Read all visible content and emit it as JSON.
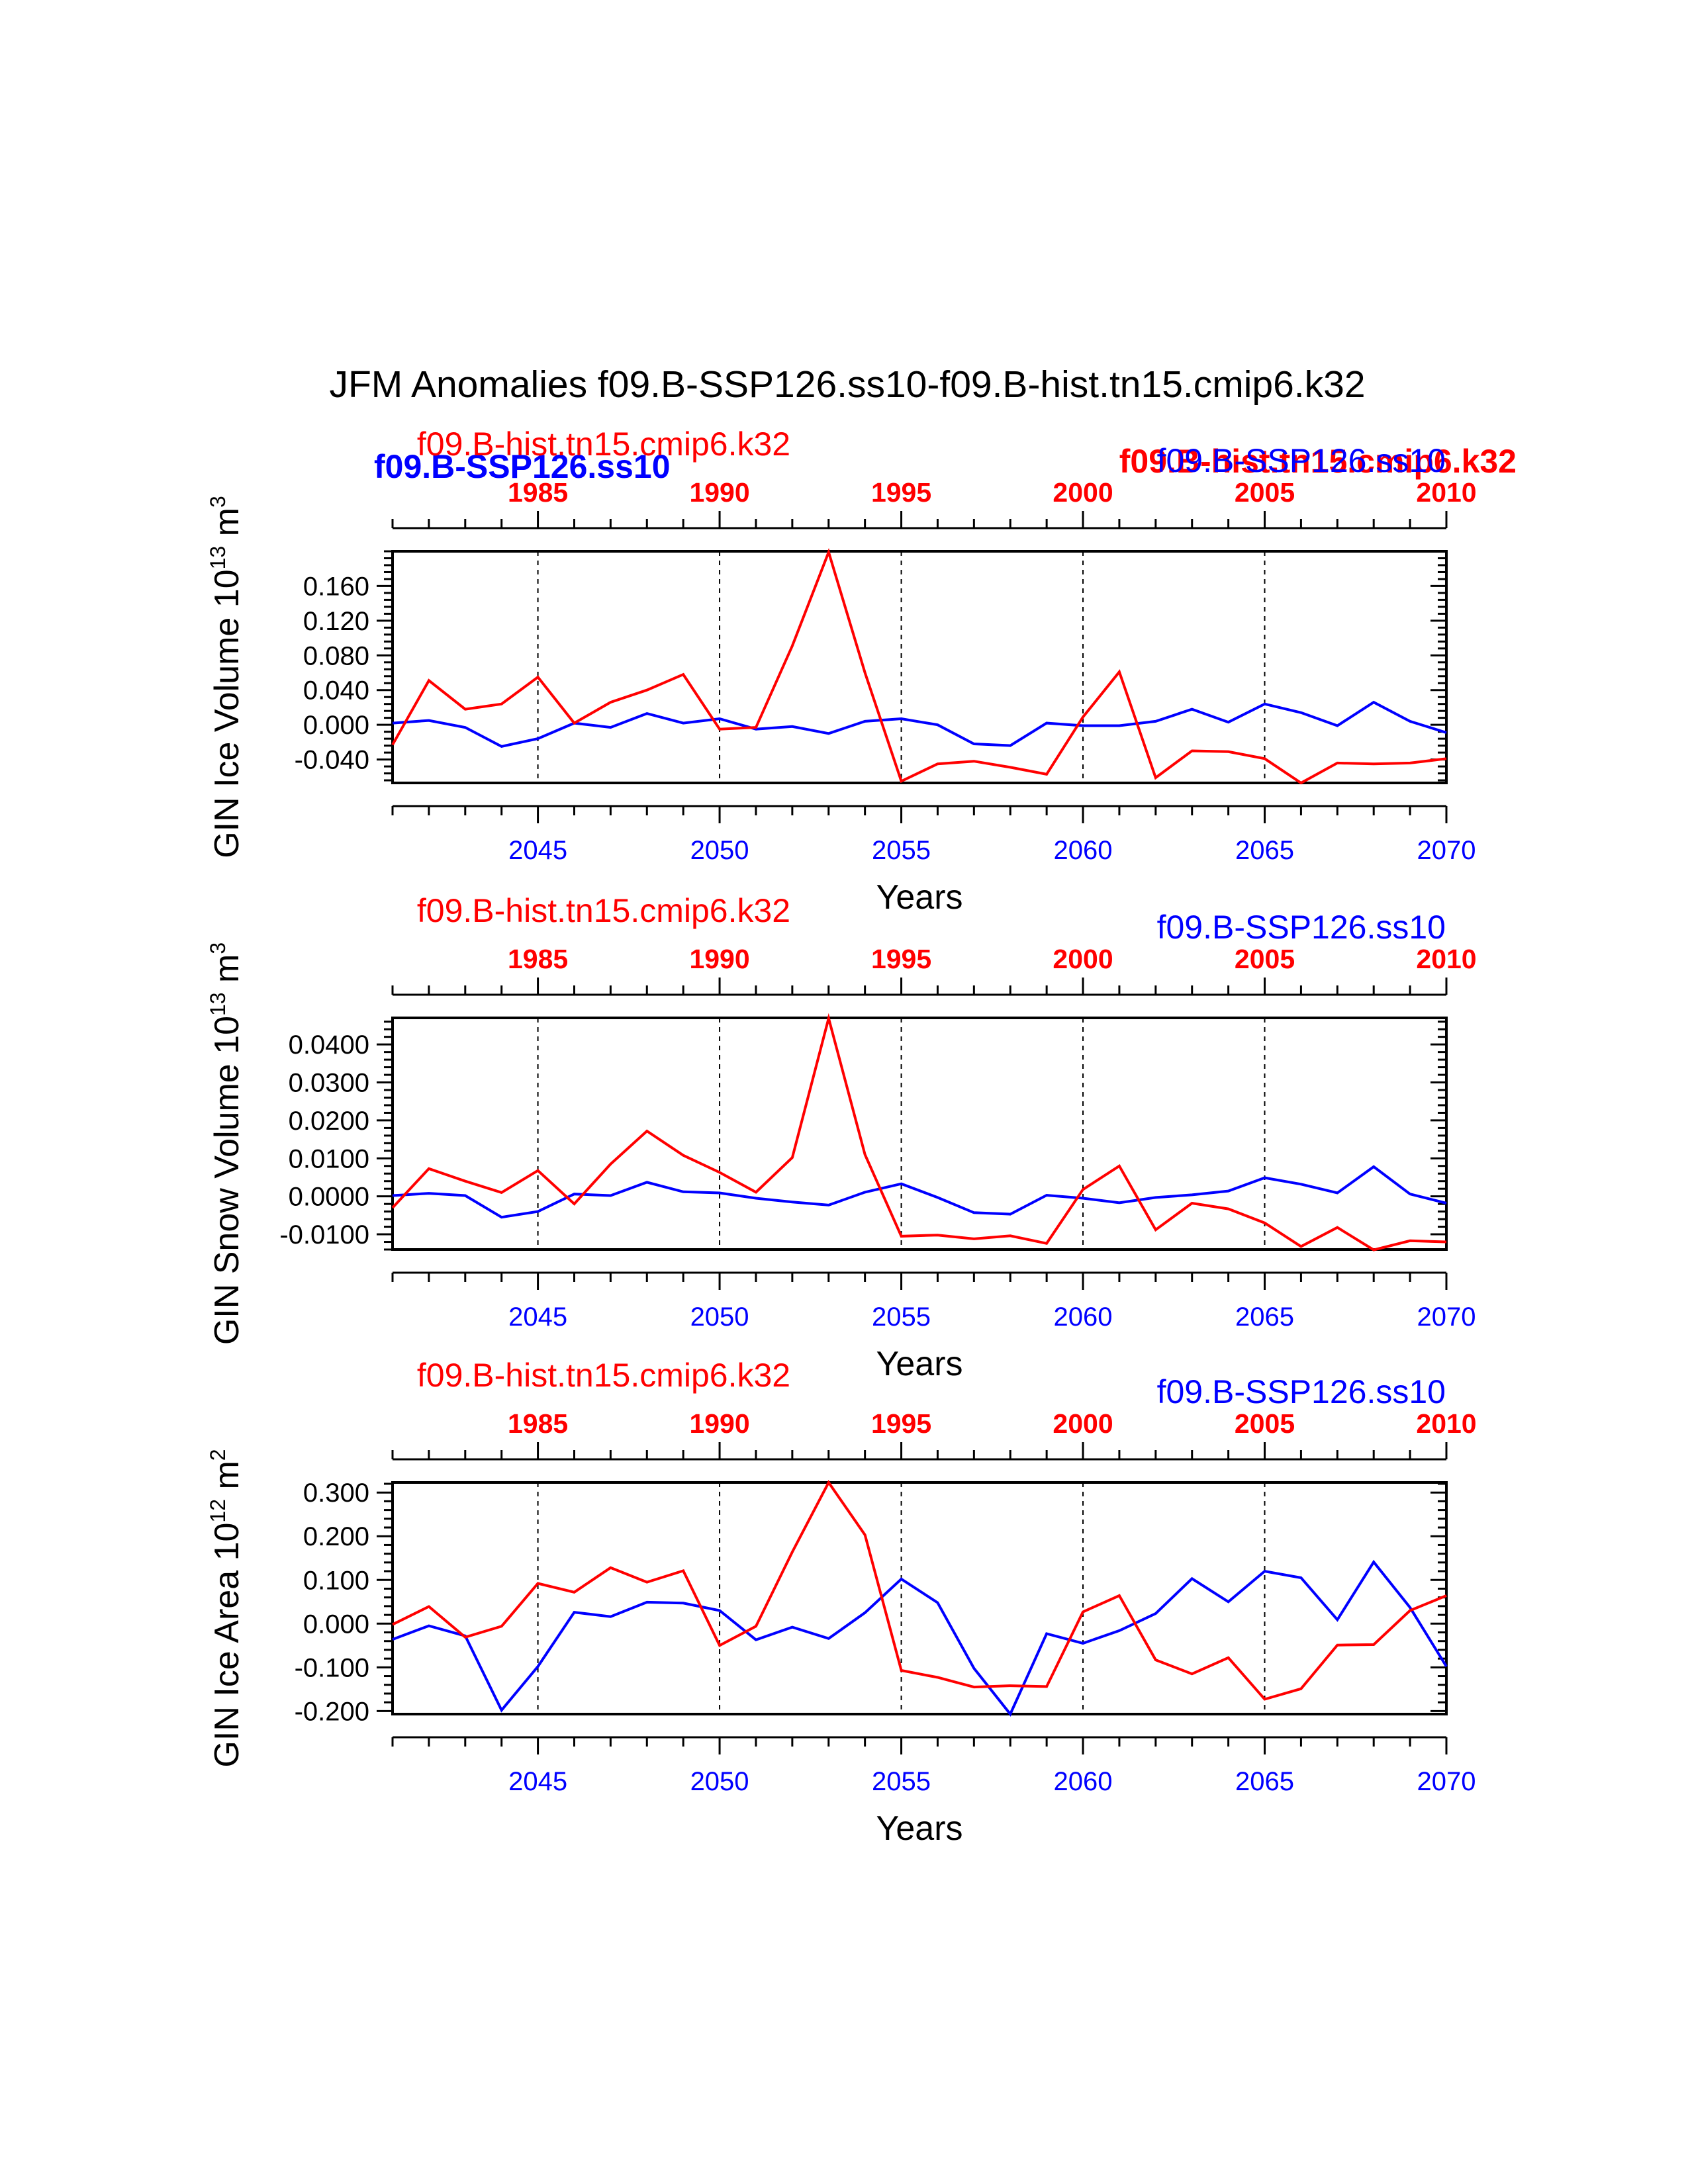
{
  "figure": {
    "title": "JFM Anomalies f09.B-SSP126.ss10-f09.B-hist.tn15.cmip6.k32",
    "bold_overlay": {
      "left_label": "f09.B-SSP126.ss10",
      "right_label": "f09.B-hist.tn15.cmip6.k32"
    }
  },
  "colors": {
    "hist": "#ff0000",
    "ssp": "#0000ff",
    "axis": "#000000"
  },
  "chart_data": [
    {
      "type": "line",
      "ylabel": "GIN Ice Volume 10",
      "ylabel_exp": "13",
      "ylabel_unit": " m",
      "ylabel_unit_exp": "3",
      "xlabel": "Years",
      "hist_name": "f09.B-hist.tn15.cmip6.k32",
      "ssp_name": "f09.B-SSP126.ss10",
      "top_xlim": [
        1981,
        2010
      ],
      "top_ticks": [
        1985,
        1990,
        1995,
        2000,
        2005,
        2010
      ],
      "top_tick_labels": [
        "1985",
        "1990",
        "1995",
        "2000",
        "2005",
        "2010"
      ],
      "bottom_xlim": [
        2041,
        2070
      ],
      "bottom_ticks": [
        2045,
        2050,
        2055,
        2060,
        2065,
        2070
      ],
      "bottom_tick_labels": [
        "2045",
        "2050",
        "2055",
        "2060",
        "2065",
        "2070"
      ],
      "ylim": [
        -0.067,
        0.2
      ],
      "yticks": [
        -0.04,
        0,
        0.04,
        0.08,
        0.12,
        0.16
      ],
      "ytick_labels": [
        "-0.040",
        "0.000",
        "0.040",
        "0.080",
        "0.120",
        "0.160"
      ],
      "yminor": 0.008,
      "grid_lines": [
        2045,
        2050,
        2055,
        2060,
        2065
      ],
      "series": [
        {
          "name": "f09.B-hist.tn15.cmip6.k32",
          "x": [
            1981,
            1982,
            1983,
            1984,
            1985,
            1986,
            1987,
            1988,
            1989,
            1990,
            1991,
            1992,
            1993,
            1994,
            1995,
            1996,
            1997,
            1998,
            1999,
            2000,
            2001,
            2002,
            2003,
            2004,
            2005,
            2006,
            2007,
            2008,
            2009,
            2010
          ],
          "values": [
            -0.023,
            0.051,
            0.018,
            0.024,
            0.055,
            0.002,
            0.026,
            0.04,
            0.058,
            -0.005,
            -0.003,
            0.091,
            0.199,
            0.06,
            -0.065,
            -0.045,
            -0.042,
            -0.049,
            -0.057,
            0.009,
            0.061,
            -0.061,
            -0.03,
            -0.031,
            -0.039,
            -0.067,
            -0.044,
            -0.045,
            -0.044,
            -0.039
          ]
        },
        {
          "name": "f09.B-SSP126.ss10",
          "x": [
            2041,
            2042,
            2043,
            2044,
            2045,
            2046,
            2047,
            2048,
            2049,
            2050,
            2051,
            2052,
            2053,
            2054,
            2055,
            2056,
            2057,
            2058,
            2059,
            2060,
            2061,
            2062,
            2063,
            2064,
            2065,
            2066,
            2067,
            2068,
            2069,
            2070
          ],
          "values": [
            0.002,
            0.005,
            -0.003,
            -0.025,
            -0.016,
            0.002,
            -0.003,
            0.013,
            0.002,
            0.007,
            -0.005,
            -0.002,
            -0.01,
            0.004,
            0.007,
            0.0,
            -0.022,
            -0.024,
            0.002,
            -0.001,
            -0.001,
            0.004,
            0.018,
            0.003,
            0.024,
            0.014,
            -0.001,
            0.026,
            0.004,
            -0.009
          ]
        }
      ]
    },
    {
      "type": "line",
      "ylabel": "GIN Snow Volume 10",
      "ylabel_exp": "13",
      "ylabel_unit": " m",
      "ylabel_unit_exp": "3",
      "xlabel": "Years",
      "hist_name": "f09.B-hist.tn15.cmip6.k32",
      "ssp_name": "f09.B-SSP126.ss10",
      "top_xlim": [
        1981,
        2010
      ],
      "top_ticks": [
        1985,
        1990,
        1995,
        2000,
        2005,
        2010
      ],
      "top_tick_labels": [
        "1985",
        "1990",
        "1995",
        "2000",
        "2005",
        "2010"
      ],
      "bottom_xlim": [
        2041,
        2070
      ],
      "bottom_ticks": [
        2045,
        2050,
        2055,
        2060,
        2065,
        2070
      ],
      "bottom_tick_labels": [
        "2045",
        "2050",
        "2055",
        "2060",
        "2065",
        "2070"
      ],
      "ylim": [
        -0.014,
        0.047
      ],
      "yticks": [
        -0.01,
        0,
        0.01,
        0.02,
        0.03,
        0.04
      ],
      "ytick_labels": [
        "-0.0100",
        "0.0000",
        "0.0100",
        "0.0200",
        "0.0300",
        "0.0400"
      ],
      "yminor": 0.002,
      "grid_lines": [
        2045,
        2050,
        2055,
        2060,
        2065
      ],
      "series": [
        {
          "name": "f09.B-hist.tn15.cmip6.k32",
          "x": [
            1981,
            1982,
            1983,
            1984,
            1985,
            1986,
            1987,
            1988,
            1989,
            1990,
            1991,
            1992,
            1993,
            1994,
            1995,
            1996,
            1997,
            1998,
            1999,
            2000,
            2001,
            2002,
            2003,
            2004,
            2005,
            2006,
            2007,
            2008,
            2009,
            2010
          ],
          "values": [
            -0.003,
            0.0073,
            0.004,
            0.001,
            0.0068,
            -0.002,
            0.0085,
            0.0172,
            0.0108,
            0.0063,
            0.0011,
            0.0102,
            0.0469,
            0.011,
            -0.0105,
            -0.0102,
            -0.0112,
            -0.0104,
            -0.0124,
            0.0018,
            0.008,
            -0.0088,
            -0.0018,
            -0.0033,
            -0.007,
            -0.0132,
            -0.0082,
            -0.0141,
            -0.0117,
            -0.012
          ]
        },
        {
          "name": "f09.B-SSP126.ss10",
          "x": [
            2041,
            2042,
            2043,
            2044,
            2045,
            2046,
            2047,
            2048,
            2049,
            2050,
            2051,
            2052,
            2053,
            2054,
            2055,
            2056,
            2057,
            2058,
            2059,
            2060,
            2061,
            2062,
            2063,
            2064,
            2065,
            2066,
            2067,
            2068,
            2069,
            2070
          ],
          "values": [
            0.0002,
            0.0008,
            0.0002,
            -0.0055,
            -0.004,
            0.0006,
            0.0002,
            0.0037,
            0.0012,
            0.0009,
            -0.0005,
            -0.0015,
            -0.0023,
            0.0011,
            0.0033,
            -0.0003,
            -0.0043,
            -0.0047,
            0.0003,
            -0.0005,
            -0.0017,
            -0.0003,
            0.0004,
            0.0014,
            0.0049,
            0.0032,
            0.0009,
            0.0078,
            0.0006,
            -0.0018
          ]
        }
      ]
    },
    {
      "type": "line",
      "ylabel": "GIN Ice Area 10",
      "ylabel_exp": "12",
      "ylabel_unit": " m",
      "ylabel_unit_exp": "2",
      "xlabel": "Years",
      "hist_name": "f09.B-hist.tn15.cmip6.k32",
      "ssp_name": "f09.B-SSP126.ss10",
      "top_xlim": [
        1981,
        2010
      ],
      "top_ticks": [
        1985,
        1990,
        1995,
        2000,
        2005,
        2010
      ],
      "top_tick_labels": [
        "1985",
        "1990",
        "1995",
        "2000",
        "2005",
        "2010"
      ],
      "bottom_xlim": [
        2041,
        2070
      ],
      "bottom_ticks": [
        2045,
        2050,
        2055,
        2060,
        2065,
        2070
      ],
      "bottom_tick_labels": [
        "2045",
        "2050",
        "2055",
        "2060",
        "2065",
        "2070"
      ],
      "ylim": [
        -0.207,
        0.323
      ],
      "yticks": [
        -0.2,
        -0.1,
        0,
        0.1,
        0.2,
        0.3
      ],
      "ytick_labels": [
        "-0.200",
        "-0.100",
        "0.000",
        "0.100",
        "0.200",
        "0.300"
      ],
      "yminor": 0.02,
      "grid_lines": [
        2045,
        2050,
        2055,
        2060,
        2065
      ],
      "series": [
        {
          "name": "f09.B-hist.tn15.cmip6.k32",
          "x": [
            1981,
            1982,
            1983,
            1984,
            1985,
            1986,
            1987,
            1988,
            1989,
            1990,
            1991,
            1992,
            1993,
            1994,
            1995,
            1996,
            1997,
            1998,
            1999,
            2000,
            2001,
            2002,
            2003,
            2004,
            2005,
            2006,
            2007,
            2008,
            2009,
            2010
          ],
          "values": [
            -0.002,
            0.039,
            -0.031,
            -0.006,
            0.092,
            0.072,
            0.128,
            0.095,
            0.121,
            -0.05,
            -0.006,
            0.164,
            0.323,
            0.203,
            -0.107,
            -0.123,
            -0.145,
            -0.142,
            -0.144,
            0.027,
            0.064,
            -0.083,
            -0.115,
            -0.078,
            -0.173,
            -0.149,
            -0.049,
            -0.048,
            0.03,
            0.064
          ]
        },
        {
          "name": "f09.B-SSP126.ss10",
          "x": [
            2041,
            2042,
            2043,
            2044,
            2045,
            2046,
            2047,
            2048,
            2049,
            2050,
            2051,
            2052,
            2053,
            2054,
            2055,
            2056,
            2057,
            2058,
            2059,
            2060,
            2061,
            2062,
            2063,
            2064,
            2065,
            2066,
            2067,
            2068,
            2069,
            2070
          ],
          "values": [
            -0.036,
            -0.005,
            -0.028,
            -0.198,
            -0.098,
            0.026,
            0.016,
            0.049,
            0.047,
            0.03,
            -0.037,
            -0.008,
            -0.034,
            0.025,
            0.102,
            0.048,
            -0.102,
            -0.207,
            -0.023,
            -0.045,
            -0.016,
            0.023,
            0.103,
            0.05,
            0.12,
            0.105,
            0.009,
            0.141,
            0.037,
            -0.098
          ]
        }
      ]
    }
  ]
}
